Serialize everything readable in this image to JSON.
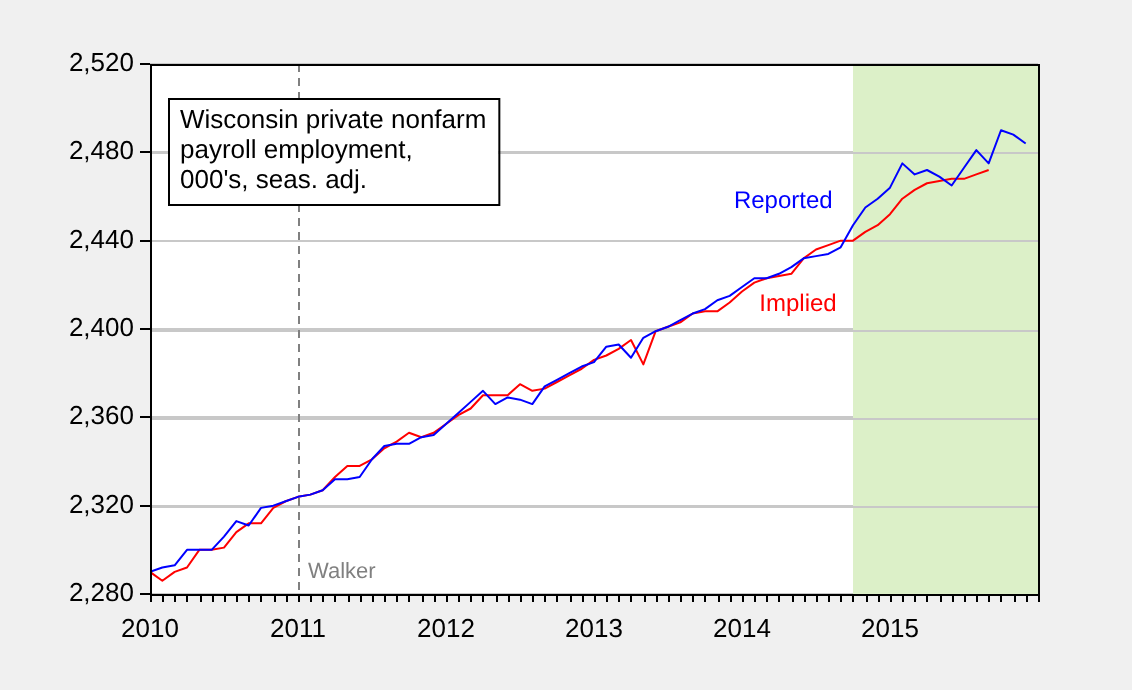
{
  "chart_data": {
    "type": "line",
    "annotations": [
      "Wisconsin private nonfarm\npayroll employment,\n000's, seas. adj."
    ],
    "xlim": [
      "2010",
      "2016"
    ],
    "xticks": [
      "2010",
      "2011",
      "2012",
      "2013",
      "2014",
      "2015"
    ],
    "ylim": [
      2280,
      2520
    ],
    "yticks": [
      {
        "value": 2280,
        "label": "2,280"
      },
      {
        "value": 2320,
        "label": "2,320"
      },
      {
        "value": 2360,
        "label": "2,360"
      },
      {
        "value": 2400,
        "label": "2,400"
      },
      {
        "value": 2440,
        "label": "2,440"
      },
      {
        "value": 2480,
        "label": "2,480"
      },
      {
        "value": 2520,
        "label": "2,520"
      }
    ],
    "grid": "y",
    "legend": false,
    "marker": "none",
    "line_style": "solid",
    "ref_lines": [
      {
        "axis": "x",
        "value": "2011",
        "label": "Walker",
        "color": "#808080",
        "line_style": "dashed"
      }
    ],
    "bands": [
      {
        "axis": "x",
        "from": "2014-10",
        "to": "2016",
        "label": null,
        "color": "#dcf0c8"
      }
    ],
    "series": [
      {
        "name": "Reported",
        "color": "#0000ff",
        "x": [
          "2010-01",
          "2010-02",
          "2010-03",
          "2010-04",
          "2010-05",
          "2010-06",
          "2010-07",
          "2010-08",
          "2010-09",
          "2010-10",
          "2010-11",
          "2010-12",
          "2011-01",
          "2011-02",
          "2011-03",
          "2011-04",
          "2011-05",
          "2011-06",
          "2011-07",
          "2011-08",
          "2011-09",
          "2011-10",
          "2011-11",
          "2011-12",
          "2012-01",
          "2012-02",
          "2012-03",
          "2012-04",
          "2012-05",
          "2012-06",
          "2012-07",
          "2012-08",
          "2012-09",
          "2012-10",
          "2012-11",
          "2012-12",
          "2013-01",
          "2013-02",
          "2013-03",
          "2013-04",
          "2013-05",
          "2013-06",
          "2013-07",
          "2013-08",
          "2013-09",
          "2013-10",
          "2013-11",
          "2013-12",
          "2014-01",
          "2014-02",
          "2014-03",
          "2014-04",
          "2014-05",
          "2014-06",
          "2014-07",
          "2014-08",
          "2014-09",
          "2014-10",
          "2014-11",
          "2014-12",
          "2015-01",
          "2015-02",
          "2015-03",
          "2015-04",
          "2015-05",
          "2015-06",
          "2015-07",
          "2015-08",
          "2015-09",
          "2015-10",
          "2015-11",
          "2015-12"
        ],
        "values": [
          2290,
          2292,
          2293,
          2300,
          2300,
          2300,
          2306,
          2313,
          2311,
          2319,
          2320,
          2322,
          2324,
          2325,
          2327,
          2332,
          2332,
          2333,
          2341,
          2347,
          2348,
          2348,
          2351,
          2352,
          2357,
          2362,
          2367,
          2372,
          2366,
          2369,
          2368,
          2366,
          2374,
          2377,
          2380,
          2383,
          2385,
          2392,
          2393,
          2387,
          2396,
          2399,
          2401,
          2404,
          2407,
          2409,
          2413,
          2415,
          2419,
          2423,
          2423,
          2425,
          2428,
          2432,
          2433,
          2434,
          2437,
          2447,
          2455,
          2459,
          2464,
          2475,
          2470,
          2472,
          2469,
          2465,
          2473,
          2481,
          2475,
          2490,
          2488,
          2484
        ]
      },
      {
        "name": "Implied",
        "color": "#ff0000",
        "x": [
          "2010-01",
          "2010-02",
          "2010-03",
          "2010-04",
          "2010-05",
          "2010-06",
          "2010-07",
          "2010-08",
          "2010-09",
          "2010-10",
          "2010-11",
          "2010-12",
          "2011-01",
          "2011-02",
          "2011-03",
          "2011-04",
          "2011-05",
          "2011-06",
          "2011-07",
          "2011-08",
          "2011-09",
          "2011-10",
          "2011-11",
          "2011-12",
          "2012-01",
          "2012-02",
          "2012-03",
          "2012-04",
          "2012-05",
          "2012-06",
          "2012-07",
          "2012-08",
          "2012-09",
          "2012-10",
          "2012-11",
          "2012-12",
          "2013-01",
          "2013-02",
          "2013-03",
          "2013-04",
          "2013-05",
          "2013-06",
          "2013-07",
          "2013-08",
          "2013-09",
          "2013-10",
          "2013-11",
          "2013-12",
          "2014-01",
          "2014-02",
          "2014-03",
          "2014-04",
          "2014-05",
          "2014-06",
          "2014-07",
          "2014-08",
          "2014-09",
          "2014-10",
          "2014-11",
          "2014-12",
          "2015-01",
          "2015-02",
          "2015-03",
          "2015-04",
          "2015-05",
          "2015-06",
          "2015-07",
          "2015-08",
          "2015-09"
        ],
        "values": [
          2290,
          2286,
          2290,
          2292,
          2300,
          2300,
          2301,
          2308,
          2312,
          2312,
          2319,
          2322,
          2324,
          2325,
          2327,
          2333,
          2338,
          2338,
          2341,
          2346,
          2349,
          2353,
          2351,
          2353,
          2357,
          2361,
          2364,
          2370,
          2370,
          2370,
          2375,
          2372,
          2373,
          2376,
          2379,
          2382,
          2386,
          2388,
          2391,
          2395,
          2384,
          2399,
          2401,
          2403,
          2407,
          2408,
          2408,
          2412,
          2417,
          2421,
          2423,
          2424,
          2425,
          2432,
          2436,
          2438,
          2440,
          2440,
          2444,
          2447,
          2452,
          2459,
          2463,
          2466,
          2467,
          2468,
          2468,
          2470,
          2472
        ]
      }
    ]
  }
}
